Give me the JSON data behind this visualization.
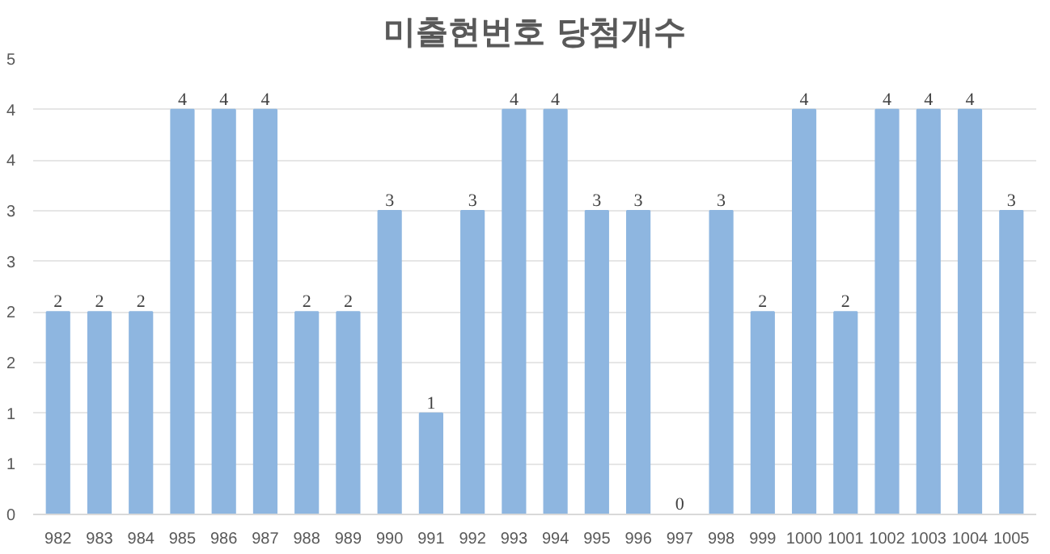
{
  "chart_data": {
    "type": "bar",
    "title": "미출현번호 당첨개수",
    "categories": [
      "982",
      "983",
      "984",
      "985",
      "986",
      "987",
      "988",
      "989",
      "990",
      "991",
      "992",
      "993",
      "994",
      "995",
      "996",
      "997",
      "998",
      "999",
      "1000",
      "1001",
      "1002",
      "1003",
      "1004",
      "1005"
    ],
    "values": [
      2,
      2,
      2,
      4,
      4,
      4,
      2,
      2,
      3,
      1,
      3,
      4,
      4,
      3,
      3,
      0,
      3,
      2,
      4,
      2,
      4,
      4,
      4,
      3
    ],
    "color": "#8eb6e0",
    "ylim": [
      0,
      4.5
    ],
    "yticks": [
      0,
      {
        "value": 0.5,
        "label": "1"
      },
      1,
      {
        "value": 1.5,
        "label": "2"
      },
      2,
      {
        "value": 2.5,
        "label": "3"
      },
      3,
      {
        "value": 3.5,
        "label": "4"
      },
      4,
      {
        "value": 4.5,
        "label": "5"
      }
    ],
    "grid": "y",
    "data_labels": true
  }
}
